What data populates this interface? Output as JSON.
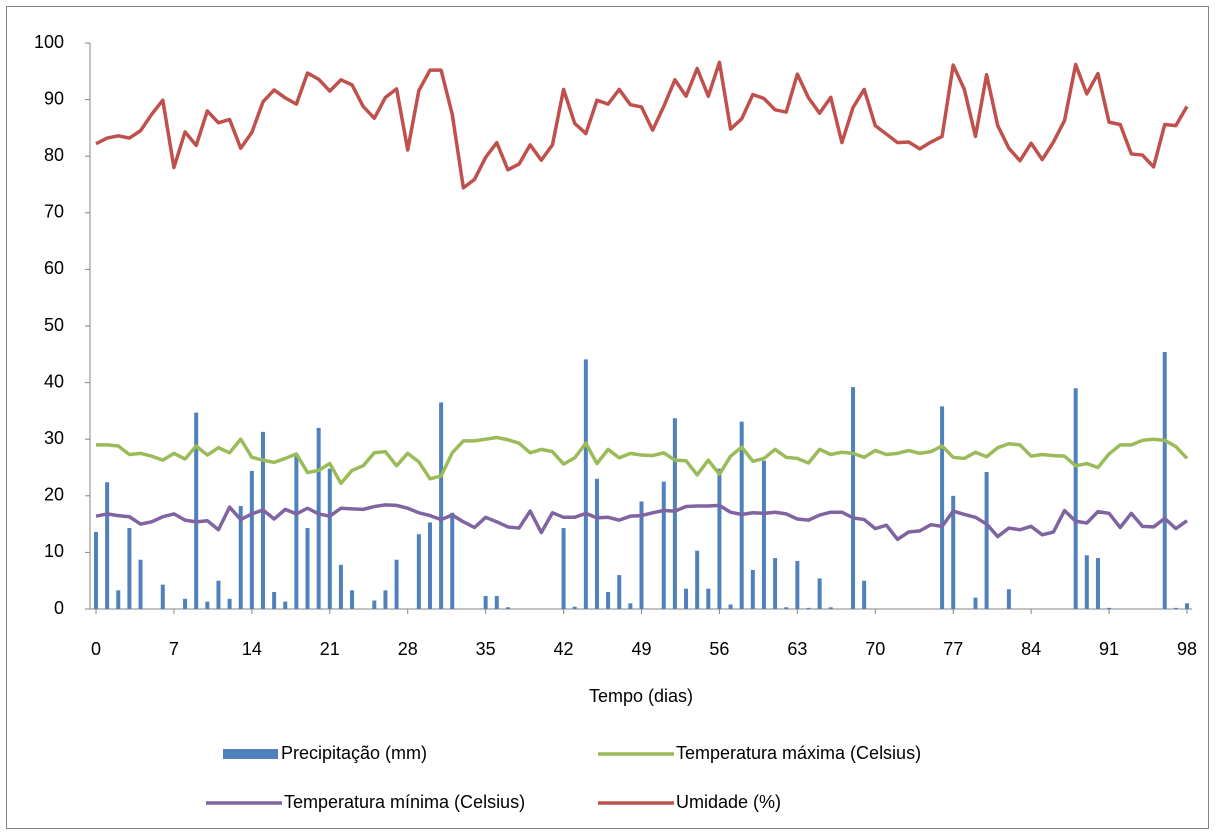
{
  "chart_data": {
    "type": "combo",
    "x_label": "Tempo (dias)",
    "x": [
      0,
      1,
      2,
      3,
      4,
      5,
      6,
      7,
      8,
      9,
      10,
      11,
      12,
      13,
      14,
      15,
      16,
      17,
      18,
      19,
      20,
      21,
      22,
      23,
      24,
      25,
      26,
      27,
      28,
      29,
      30,
      31,
      32,
      33,
      34,
      35,
      36,
      37,
      38,
      39,
      40,
      41,
      42,
      43,
      44,
      45,
      46,
      47,
      48,
      49,
      50,
      51,
      52,
      53,
      54,
      55,
      56,
      57,
      58,
      59,
      60,
      61,
      62,
      63,
      64,
      65,
      66,
      67,
      68,
      69,
      70,
      71,
      72,
      73,
      74,
      75,
      76,
      77,
      78,
      79,
      80,
      81,
      82,
      83,
      84,
      85,
      86,
      87,
      88,
      89,
      90,
      91,
      92,
      93,
      94,
      95,
      96,
      97,
      98
    ],
    "xlim": [
      0,
      98
    ],
    "xticks": [
      0,
      7,
      14,
      21,
      28,
      35,
      42,
      49,
      56,
      63,
      70,
      77,
      84,
      91,
      98
    ],
    "ylim": [
      0,
      100
    ],
    "yticks": [
      0,
      10,
      20,
      30,
      40,
      50,
      60,
      70,
      80,
      90,
      100
    ],
    "grid": false,
    "legend": "bottom",
    "series": [
      {
        "name": "Precipitação (mm)",
        "type": "bar",
        "color": "#4f81bd",
        "values": [
          13.6,
          22.4,
          3.3,
          14.3,
          8.7,
          0,
          4.3,
          0,
          1.8,
          34.7,
          1.3,
          5,
          1.8,
          18.2,
          24.4,
          31.3,
          3,
          1.3,
          27,
          14.3,
          32,
          24.8,
          7.8,
          3.3,
          0,
          1.5,
          3.3,
          8.7,
          0,
          13.2,
          15.3,
          36.5,
          17,
          0,
          0,
          2.3,
          2.3,
          0.3,
          0,
          0,
          0,
          0,
          14.3,
          0.4,
          44.1,
          23,
          3,
          6,
          1,
          19,
          0,
          22.5,
          33.7,
          3.6,
          10.3,
          3.6,
          24.8,
          0.8,
          33.1,
          6.9,
          26.2,
          9,
          0.3,
          8.5,
          0.2,
          5.4,
          0.3,
          0,
          39.2,
          5,
          0,
          0,
          0,
          0,
          0,
          0,
          35.8,
          20,
          0,
          2,
          24.2,
          0,
          3.5,
          0,
          0,
          0,
          0,
          0,
          39,
          9.5,
          9,
          0.2,
          0,
          0,
          0,
          0,
          45.4,
          0.2,
          1
        ]
      },
      {
        "name": "Temperatura máxima (Celsius)",
        "type": "line",
        "color": "#9bbb59",
        "values": [
          29,
          29,
          28.8,
          27.3,
          27.5,
          27,
          26.3,
          27.5,
          26.5,
          28.8,
          27.2,
          28.5,
          27.6,
          30,
          26.8,
          26.3,
          25.9,
          26.6,
          27.4,
          24.1,
          24.5,
          25.7,
          22.2,
          24.5,
          25.3,
          27.6,
          27.8,
          25.3,
          27.5,
          26,
          23,
          23.5,
          27.6,
          29.7,
          29.7,
          30,
          30.3,
          29.9,
          29.3,
          27.6,
          28.2,
          27.8,
          25.6,
          26.7,
          29.3,
          25.7,
          28.2,
          26.7,
          27.5,
          27.2,
          27.1,
          27.6,
          26.3,
          26.2,
          23.7,
          26.3,
          23.8,
          27,
          28.6,
          26.1,
          26.6,
          28.2,
          26.8,
          26.6,
          25.8,
          28.2,
          27.3,
          27.7,
          27.5,
          26.8,
          28,
          27.3,
          27.5,
          28,
          27.5,
          27.8,
          28.8,
          26.8,
          26.6,
          27.7,
          26.9,
          28.5,
          29.2,
          29,
          27,
          27.3,
          27.1,
          27,
          25.3,
          25.7,
          25,
          27.4,
          29,
          29,
          29.8,
          30,
          29.8,
          28.7,
          26.6
        ]
      },
      {
        "name": "Temperatura mínima (Celsius)",
        "type": "line",
        "color": "#8064a2",
        "values": [
          16.4,
          16.8,
          16.5,
          16.3,
          15,
          15.4,
          16.3,
          16.8,
          15.7,
          15.4,
          15.6,
          14,
          18,
          15.8,
          16.8,
          17.5,
          15.9,
          17.6,
          16.8,
          17.8,
          16.8,
          16.4,
          17.8,
          17.7,
          17.6,
          18.1,
          18.4,
          18.3,
          17.8,
          17,
          16.5,
          15.8,
          16.6,
          15.4,
          14.4,
          16.2,
          15.4,
          14.5,
          14.3,
          17.3,
          13.5,
          17,
          16.2,
          16.2,
          16.9,
          16.1,
          16.2,
          15.7,
          16.4,
          16.5,
          17,
          17.4,
          17.3,
          18.1,
          18.2,
          18.2,
          18.3,
          17.1,
          16.7,
          17,
          16.9,
          17.1,
          16.8,
          15.9,
          15.7,
          16.6,
          17.1,
          17.1,
          16.1,
          15.8,
          14.2,
          14.8,
          12.3,
          13.6,
          13.8,
          14.9,
          14.6,
          17.3,
          16.7,
          16.2,
          15,
          12.8,
          14.3,
          14,
          14.6,
          13.1,
          13.6,
          17.4,
          15.5,
          15.2,
          17.2,
          16.9,
          14.4,
          16.9,
          14.6,
          14.5,
          16,
          14.2,
          15.6
        ]
      },
      {
        "name": "Umidade (%)",
        "type": "line",
        "color": "#c0504d",
        "values": [
          82.2,
          83.2,
          83.6,
          83.2,
          84.5,
          87.4,
          89.9,
          78,
          84.3,
          81.9,
          88,
          85.9,
          86.5,
          81.4,
          84.2,
          89.6,
          91.7,
          90.3,
          89.2,
          94.7,
          93.6,
          91.5,
          93.5,
          92.6,
          88.8,
          86.7,
          90.4,
          91.9,
          81.1,
          91.6,
          95.2,
          95.2,
          87.4,
          74.4,
          75.9,
          79.8,
          82.4,
          77.6,
          78.6,
          82,
          79.3,
          82,
          91.8,
          85.8,
          84,
          89.9,
          89.2,
          91.8,
          89.1,
          88.7,
          84.6,
          88.8,
          93.5,
          90.6,
          95.5,
          90.6,
          96.6,
          84.8,
          86.6,
          90.9,
          90.2,
          88.2,
          87.8,
          94.5,
          90.3,
          87.6,
          90.4,
          82.4,
          88.6,
          91.8,
          85.4,
          83.9,
          82.4,
          82.5,
          81.3,
          82.5,
          83.5,
          96.1,
          91.8,
          83.5,
          94.4,
          85.4,
          81.4,
          79.2,
          82.3,
          79.4,
          82.5,
          86.3,
          96.2,
          91,
          94.6,
          86,
          85.6,
          80.4,
          80.2,
          78.1,
          85.6,
          85.4,
          88.8
        ]
      }
    ]
  }
}
